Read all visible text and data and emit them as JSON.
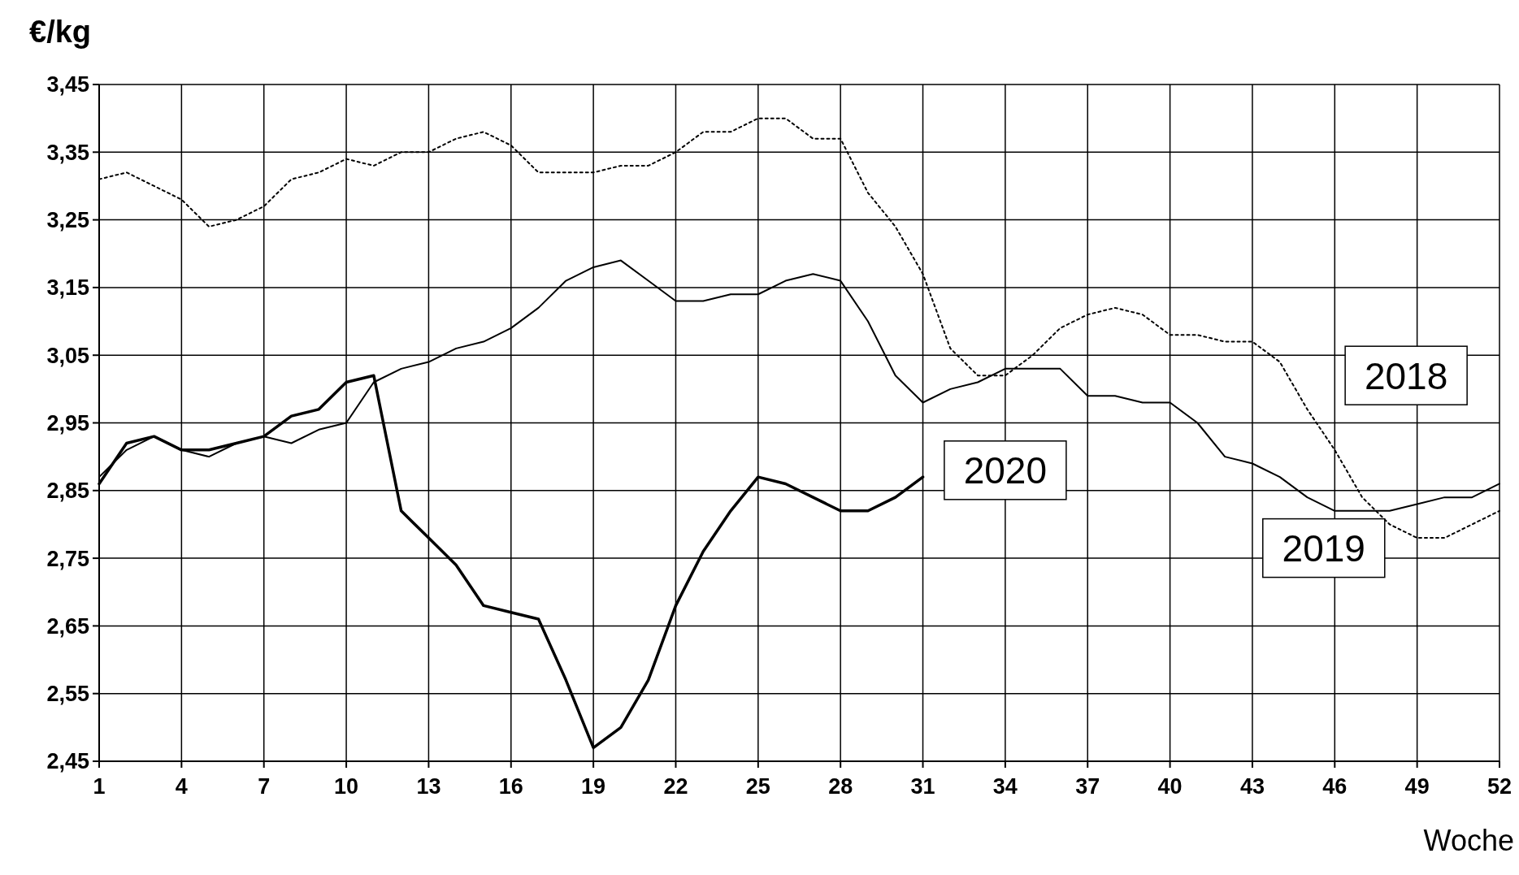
{
  "chart_data": {
    "type": "line",
    "ylabel": "€/kg",
    "xlabel": "Woche",
    "xlim": [
      1,
      52
    ],
    "xticks": [
      1,
      4,
      7,
      10,
      13,
      16,
      19,
      22,
      25,
      28,
      31,
      34,
      37,
      40,
      43,
      46,
      49,
      52
    ],
    "ylim": [
      2.45,
      3.45
    ],
    "yticks": [
      {
        "value": 2.45,
        "label": "2,45"
      },
      {
        "value": 2.55,
        "label": "2,55"
      },
      {
        "value": 2.65,
        "label": "2,65"
      },
      {
        "value": 2.75,
        "label": "2,75"
      },
      {
        "value": 2.85,
        "label": "2,85"
      },
      {
        "value": 2.95,
        "label": "2,95"
      },
      {
        "value": 3.05,
        "label": "3,05"
      },
      {
        "value": 3.15,
        "label": "3,15"
      },
      {
        "value": 3.25,
        "label": "3,25"
      },
      {
        "value": 3.35,
        "label": "3,35"
      },
      {
        "value": 3.45,
        "label": "3,45"
      }
    ],
    "grid": true,
    "legend": false,
    "x": [
      1,
      2,
      3,
      4,
      5,
      6,
      7,
      8,
      9,
      10,
      11,
      12,
      13,
      14,
      15,
      16,
      17,
      18,
      19,
      20,
      21,
      22,
      23,
      24,
      25,
      26,
      27,
      28,
      29,
      30,
      31,
      32,
      33,
      34,
      35,
      36,
      37,
      38,
      39,
      40,
      41,
      42,
      43,
      44,
      45,
      46,
      47,
      48,
      49,
      50,
      51,
      52
    ],
    "series": [
      {
        "name": "2018",
        "color": "#000000",
        "line_style": "dotted",
        "values": [
          3.31,
          3.32,
          3.3,
          3.28,
          3.24,
          3.25,
          3.27,
          3.31,
          3.32,
          3.34,
          3.33,
          3.35,
          3.35,
          3.37,
          3.38,
          3.36,
          3.32,
          3.32,
          3.32,
          3.33,
          3.33,
          3.35,
          3.38,
          3.38,
          3.4,
          3.4,
          3.37,
          3.37,
          3.29,
          3.24,
          3.17,
          3.06,
          3.02,
          3.02,
          3.05,
          3.09,
          3.11,
          3.12,
          3.11,
          3.08,
          3.08,
          3.07,
          3.07,
          3.04,
          2.97,
          2.91,
          2.84,
          2.8,
          2.78,
          2.78,
          2.8,
          2.82
        ]
      },
      {
        "name": "2019",
        "color": "#000000",
        "line_style": "solid",
        "values": [
          2.87,
          2.91,
          2.93,
          2.91,
          2.9,
          2.92,
          2.93,
          2.92,
          2.94,
          2.95,
          3.01,
          3.03,
          3.04,
          3.06,
          3.07,
          3.09,
          3.12,
          3.16,
          3.18,
          3.19,
          3.16,
          3.13,
          3.13,
          3.14,
          3.14,
          3.16,
          3.17,
          3.16,
          3.1,
          3.02,
          2.98,
          3.0,
          3.01,
          3.03,
          3.03,
          3.03,
          2.99,
          2.99,
          2.98,
          2.98,
          2.95,
          2.9,
          2.89,
          2.87,
          2.84,
          2.82,
          2.82,
          2.82,
          2.83,
          2.84,
          2.84,
          2.86
        ]
      },
      {
        "name": "2020",
        "color": "#000000",
        "line_style": "solid",
        "values": [
          2.86,
          2.92,
          2.93,
          2.91,
          2.91,
          2.92,
          2.93,
          2.96,
          2.97,
          3.01,
          3.02,
          2.82,
          2.78,
          2.74,
          2.68,
          2.67,
          2.66,
          2.57,
          2.47,
          2.5,
          2.57,
          2.68,
          2.76,
          2.82,
          2.87,
          2.86,
          2.84,
          2.82,
          2.82,
          2.84,
          2.87,
          null,
          null,
          null,
          null,
          null,
          null,
          null,
          null,
          null,
          null,
          null,
          null,
          null,
          null,
          null,
          null,
          null,
          null,
          null,
          null,
          null
        ]
      }
    ]
  }
}
